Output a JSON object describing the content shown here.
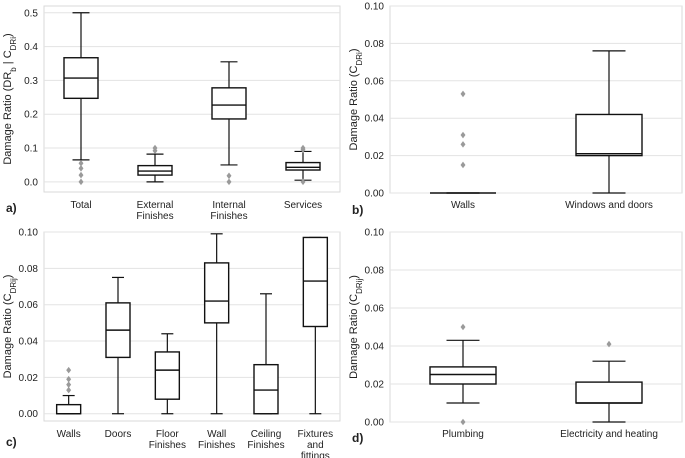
{
  "chart_data": [
    {
      "panel": "a)",
      "type": "box",
      "ylabel": "Damage Ratio (DR_b | C_DRi)",
      "ylim": [
        -0.03,
        0.52
      ],
      "yticks": [
        0.0,
        0.1,
        0.2,
        0.3,
        0.4,
        0.5
      ],
      "ytick_labels": [
        "0.0",
        "0.1",
        "0.2",
        "0.3",
        "0.4",
        "0.5"
      ],
      "grid": true,
      "categories": [
        {
          "label": [
            "Total"
          ],
          "whislo": 0.065,
          "q1": 0.247,
          "med": 0.307,
          "q3": 0.367,
          "whishi": 0.5,
          "fliers": [
            0.0,
            0.02,
            0.04,
            0.055
          ]
        },
        {
          "label": [
            "External",
            "Finishes"
          ],
          "whislo": 0.0,
          "q1": 0.02,
          "med": 0.032,
          "q3": 0.048,
          "whishi": 0.082,
          "fliers": [
            0.092,
            0.1
          ]
        },
        {
          "label": [
            "Internal",
            "Finishes"
          ],
          "whislo": 0.05,
          "q1": 0.186,
          "med": 0.227,
          "q3": 0.278,
          "whishi": 0.355,
          "fliers": [
            0.0,
            0.018
          ]
        },
        {
          "label": [
            "Services"
          ],
          "whislo": 0.005,
          "q1": 0.035,
          "med": 0.043,
          "q3": 0.057,
          "whishi": 0.09,
          "fliers": [
            0.0,
            0.095,
            0.1
          ]
        }
      ]
    },
    {
      "panel": "b)",
      "type": "box",
      "ylabel": "Damage Ratio (C_DRi)",
      "ylim": [
        0.0,
        0.1
      ],
      "yticks": [
        0.0,
        0.02,
        0.04,
        0.06,
        0.08,
        0.1
      ],
      "ytick_labels": [
        "0.00",
        "0.02",
        "0.04",
        "0.06",
        "0.08",
        "0.10"
      ],
      "grid": true,
      "categories": [
        {
          "label": [
            "Walls"
          ],
          "whislo": 0.0,
          "q1": 0.0,
          "med": 0.0,
          "q3": 0.0,
          "whishi": 0.0,
          "fliers": [
            0.015,
            0.026,
            0.031,
            0.053
          ]
        },
        {
          "label": [
            "Windows and doors"
          ],
          "whislo": 0.0,
          "q1": 0.02,
          "med": 0.021,
          "q3": 0.042,
          "whishi": 0.076,
          "fliers": []
        }
      ]
    },
    {
      "panel": "c)",
      "type": "box",
      "ylabel": "Damage Ratio (C_DRij)",
      "ylim": [
        -0.004,
        0.1
      ],
      "yticks": [
        0.0,
        0.02,
        0.04,
        0.06,
        0.08,
        0.1
      ],
      "ytick_labels": [
        "0.00",
        "0.02",
        "0.04",
        "0.06",
        "0.08",
        "0.10"
      ],
      "grid": true,
      "categories": [
        {
          "label": [
            "Walls"
          ],
          "whislo": 0.0,
          "q1": 0.0,
          "med": 0.0,
          "q3": 0.005,
          "whishi": 0.01,
          "fliers": [
            0.013,
            0.016,
            0.019,
            0.024
          ]
        },
        {
          "label": [
            "Doors"
          ],
          "whislo": 0.0,
          "q1": 0.031,
          "med": 0.046,
          "q3": 0.061,
          "whishi": 0.075,
          "fliers": []
        },
        {
          "label": [
            "Floor",
            "Finishes"
          ],
          "whislo": 0.0,
          "q1": 0.008,
          "med": 0.024,
          "q3": 0.034,
          "whishi": 0.044,
          "fliers": []
        },
        {
          "label": [
            "Wall",
            "Finishes"
          ],
          "whislo": 0.0,
          "q1": 0.05,
          "med": 0.062,
          "q3": 0.083,
          "whishi": 0.099,
          "fliers": []
        },
        {
          "label": [
            "Ceiling",
            "Finishes"
          ],
          "whislo": 0.0,
          "q1": 0.0,
          "med": 0.013,
          "q3": 0.027,
          "whishi": 0.066,
          "fliers": []
        },
        {
          "label": [
            "Fixtures",
            "and",
            "fittings"
          ],
          "whislo": 0.0,
          "q1": 0.048,
          "med": 0.073,
          "q3": 0.097,
          "whishi": 0.097,
          "fliers": []
        }
      ]
    },
    {
      "panel": "d)",
      "type": "box",
      "ylabel": "Damage Ratio (C_DRij)",
      "ylim": [
        0.0,
        0.1
      ],
      "yticks": [
        0.0,
        0.02,
        0.04,
        0.06,
        0.08,
        0.1
      ],
      "ytick_labels": [
        "0.00",
        "0.02",
        "0.04",
        "0.06",
        "0.08",
        "0.10"
      ],
      "grid": true,
      "categories": [
        {
          "label": [
            "Plumbing"
          ],
          "whislo": 0.01,
          "q1": 0.02,
          "med": 0.025,
          "q3": 0.029,
          "whishi": 0.043,
          "fliers": [
            0.0,
            0.05
          ]
        },
        {
          "label": [
            "Electricity and heating"
          ],
          "whislo": 0.0,
          "q1": 0.01,
          "med": 0.01,
          "q3": 0.021,
          "whishi": 0.032,
          "fliers": [
            0.041
          ]
        }
      ]
    }
  ],
  "colors": {
    "box_edge": "#111111",
    "flier": "#9a9a9a",
    "grid": "#e3e3e3",
    "frame": "#d9d9d9"
  }
}
